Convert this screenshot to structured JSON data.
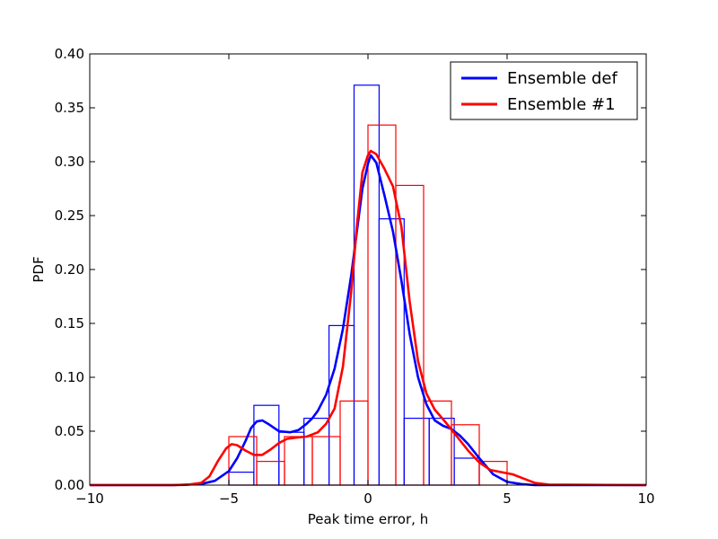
{
  "chart_data": {
    "type": "line",
    "xlabel": "Peak time error, h",
    "ylabel": "PDF",
    "xlim": [
      -10,
      10
    ],
    "ylim": [
      0,
      0.4
    ],
    "xticks": [
      -10,
      -5,
      0,
      5,
      10
    ],
    "xtick_labels": [
      "−10",
      "−5",
      "0",
      "5",
      "10"
    ],
    "yticks": [
      0,
      0.05,
      0.1,
      0.15,
      0.2,
      0.25,
      0.3,
      0.35,
      0.4
    ],
    "ytick_labels": [
      "0.00",
      "0.05",
      "0.10",
      "0.15",
      "0.20",
      "0.25",
      "0.30",
      "0.35",
      "0.40"
    ],
    "legend_position": "top-right",
    "grid": false,
    "histograms": [
      {
        "series": "Ensemble def",
        "color": "#0000ff",
        "edges": [
          -5,
          -4.1,
          -3.2,
          -2.3,
          -1.4,
          -0.5,
          0.4,
          1.3,
          2.2,
          3.1,
          4.0
        ],
        "values": [
          0.012,
          0.074,
          0.049,
          0.062,
          0.148,
          0.371,
          0.247,
          0.062,
          0.062,
          0.025
        ]
      },
      {
        "series": "Ensemble #1",
        "color": "#ff0000",
        "edges": [
          -5,
          -4,
          -3,
          -2,
          -1,
          0,
          1,
          2,
          3,
          4,
          5
        ],
        "values": [
          0.045,
          0.022,
          0.045,
          0.045,
          0.078,
          0.334,
          0.278,
          0.078,
          0.056,
          0.022
        ]
      }
    ],
    "series": [
      {
        "name": "Ensemble def",
        "color": "#0000ff",
        "x": [
          -10,
          -7,
          -6,
          -5.5,
          -5,
          -4.7,
          -4.4,
          -4.2,
          -4.0,
          -3.8,
          -3.6,
          -3.2,
          -2.8,
          -2.5,
          -2.2,
          -2.0,
          -1.8,
          -1.5,
          -1.2,
          -0.9,
          -0.6,
          -0.4,
          -0.2,
          0,
          0.1,
          0.3,
          0.6,
          0.9,
          1.2,
          1.5,
          1.8,
          2.1,
          2.4,
          2.7,
          3.0,
          3.3,
          3.6,
          4.0,
          4.5,
          5.0,
          5.5,
          6,
          10
        ],
        "values": [
          0,
          0,
          0.001,
          0.004,
          0.013,
          0.025,
          0.041,
          0.053,
          0.059,
          0.06,
          0.057,
          0.05,
          0.049,
          0.051,
          0.057,
          0.062,
          0.069,
          0.084,
          0.108,
          0.145,
          0.195,
          0.235,
          0.275,
          0.298,
          0.306,
          0.299,
          0.268,
          0.235,
          0.19,
          0.14,
          0.1,
          0.075,
          0.06,
          0.055,
          0.052,
          0.046,
          0.038,
          0.025,
          0.01,
          0.003,
          0.001,
          0,
          0
        ]
      },
      {
        "name": "Ensemble #1",
        "color": "#ff0000",
        "x": [
          -10,
          -7,
          -6.5,
          -6,
          -5.7,
          -5.4,
          -5.1,
          -4.9,
          -4.7,
          -4.4,
          -4.1,
          -3.8,
          -3.5,
          -3.2,
          -2.9,
          -2.6,
          -2.2,
          -1.8,
          -1.5,
          -1.2,
          -0.9,
          -0.6,
          -0.4,
          -0.2,
          0,
          0.1,
          0.3,
          0.6,
          0.9,
          1.2,
          1.5,
          1.8,
          2.1,
          2.4,
          2.8,
          3.2,
          3.6,
          4.0,
          4.4,
          4.8,
          5.2,
          5.6,
          6.0,
          6.5,
          10
        ],
        "values": [
          0,
          0,
          0.0003,
          0.002,
          0.008,
          0.022,
          0.034,
          0.038,
          0.037,
          0.032,
          0.028,
          0.028,
          0.033,
          0.039,
          0.043,
          0.044,
          0.045,
          0.049,
          0.057,
          0.071,
          0.11,
          0.18,
          0.24,
          0.29,
          0.306,
          0.31,
          0.307,
          0.293,
          0.277,
          0.24,
          0.17,
          0.115,
          0.085,
          0.07,
          0.058,
          0.045,
          0.032,
          0.021,
          0.014,
          0.012,
          0.01,
          0.006,
          0.002,
          0.0005,
          0
        ]
      }
    ]
  }
}
